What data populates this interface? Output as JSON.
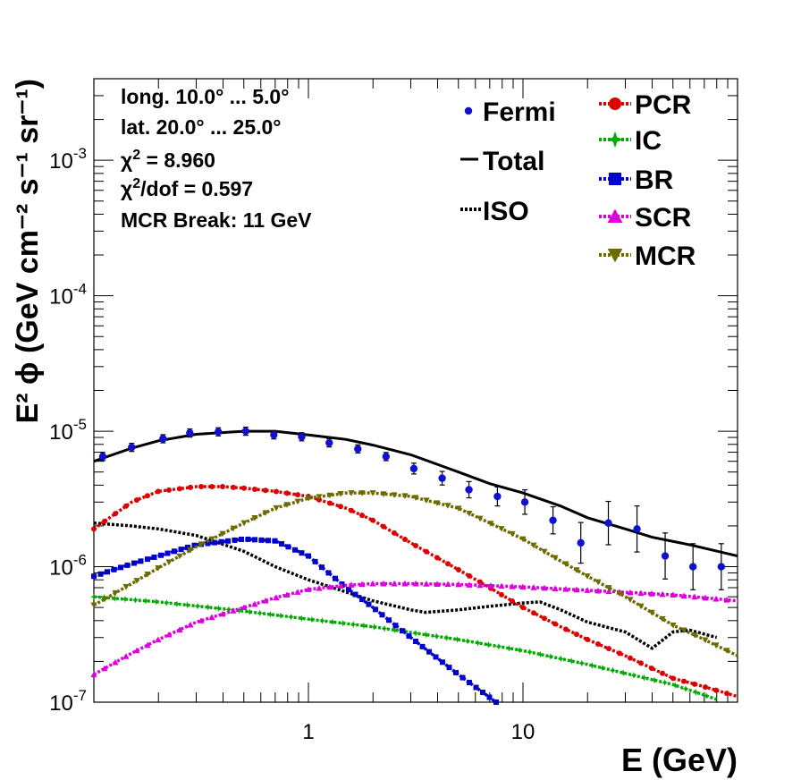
{
  "chart_data": {
    "type": "line",
    "xlabel": "E (GeV)",
    "ylabel": "E² ϕ (GeV cm⁻² s⁻¹ sr⁻¹)",
    "x_scale": "log",
    "y_scale": "log",
    "xlim": [
      0.1,
      100
    ],
    "ylim": [
      1e-07,
      0.004
    ],
    "x_tick_labels": [
      "1",
      "10"
    ],
    "y_tick_labels": [
      "10-7",
      "10-6",
      "10-5",
      "10-4",
      "10-3"
    ],
    "grid": false,
    "legend_position": "top-right",
    "annotations": [
      "long. 10.0° ... 5.0°",
      "lat. 20.0° ... 25.0°",
      "χ² = 8.960",
      "χ²/dof = 0.597",
      "MCR Break: 11 GeV"
    ],
    "fermi": {
      "name": "Fermi",
      "color": "#1010d0",
      "x": [
        0.11,
        0.15,
        0.21,
        0.28,
        0.38,
        0.51,
        0.69,
        0.93,
        1.25,
        1.7,
        2.3,
        3.1,
        4.2,
        5.6,
        7.6,
        10.2,
        13.8,
        18.6,
        25,
        34,
        46,
        62,
        84
      ],
      "y": [
        6.5e-06,
        7.6e-06,
        8.8e-06,
        9.7e-06,
        9.9e-06,
        1e-05,
        9.4e-06,
        9.1e-06,
        8.2e-06,
        7.4e-06,
        6.5e-06,
        5.3e-06,
        4.5e-06,
        3.7e-06,
        3.3e-06,
        3e-06,
        2.2e-06,
        1.5e-06,
        2.1e-06,
        1.9e-06,
        1.2e-06,
        1e-06,
        1e-06
      ],
      "err": [
        0.03,
        0.03,
        0.03,
        0.03,
        0.03,
        0.03,
        0.03,
        0.03,
        0.03,
        0.03,
        0.03,
        0.04,
        0.05,
        0.06,
        0.07,
        0.09,
        0.1,
        0.15,
        0.16,
        0.17,
        0.17,
        0.17,
        0.17
      ]
    },
    "series": [
      {
        "name": "Total",
        "color": "#000000",
        "style": "solid",
        "marker": "none",
        "x": [
          0.1,
          0.15,
          0.2,
          0.3,
          0.5,
          0.7,
          1.0,
          1.5,
          2.0,
          3.0,
          5.0,
          7.0,
          10,
          15,
          20,
          30,
          40,
          60,
          100
        ],
        "y": [
          6e-06,
          7.5e-06,
          8.5e-06,
          9.5e-06,
          1e-05,
          1e-05,
          9.4e-06,
          8.7e-06,
          7.9e-06,
          6.7e-06,
          5e-06,
          4.1e-06,
          3.5e-06,
          2.8e-06,
          2.3e-06,
          1.9e-06,
          1.65e-06,
          1.45e-06,
          1.2e-06
        ]
      },
      {
        "name": "ISO",
        "color": "#000000",
        "style": "dotted",
        "marker": "none",
        "x": [
          0.1,
          0.15,
          0.2,
          0.3,
          0.5,
          0.7,
          1.0,
          1.5,
          2.0,
          3.0,
          3.5,
          5.0,
          7.0,
          10,
          12,
          15,
          20,
          30,
          40,
          50,
          60,
          80
        ],
        "y": [
          2.1e-06,
          2e-06,
          1.9e-06,
          1.7e-06,
          1.3e-06,
          1e-06,
          8e-07,
          6.5e-07,
          5.6e-07,
          4.8e-07,
          4.6e-07,
          4.8e-07,
          5.1e-07,
          5.4e-07,
          5.5e-07,
          4.8e-07,
          3.9e-07,
          3.3e-07,
          2.5e-07,
          3.3e-07,
          3.4e-07,
          3e-07
        ]
      },
      {
        "name": "PCR",
        "color": "#dd0000",
        "style": "dotted",
        "marker": "circle",
        "x": [
          0.1,
          0.15,
          0.2,
          0.3,
          0.4,
          0.5,
          0.7,
          1.0,
          1.5,
          2.0,
          3.0,
          5.0,
          7.0,
          10,
          15,
          20,
          30,
          50,
          70,
          100
        ],
        "y": [
          1.9e-06,
          3e-06,
          3.6e-06,
          3.9e-06,
          3.9e-06,
          3.8e-06,
          3.6e-06,
          3.3e-06,
          2.7e-06,
          2.2e-06,
          1.5e-06,
          9.5e-07,
          7e-07,
          5e-07,
          3.6e-07,
          2.9e-07,
          2.2e-07,
          1.5e-07,
          1.3e-07,
          1.1e-07
        ]
      },
      {
        "name": "IC",
        "color": "#00aa00",
        "style": "dotted",
        "marker": "star",
        "x": [
          0.1,
          0.2,
          0.5,
          1.0,
          2.0,
          5.0,
          10,
          20,
          50,
          80
        ],
        "y": [
          6e-07,
          5.5e-07,
          4.7e-07,
          4.1e-07,
          3.6e-07,
          2.9e-07,
          2.4e-07,
          1.9e-07,
          1.35e-07,
          1.05e-07
        ]
      },
      {
        "name": "BR",
        "color": "#0000cc",
        "style": "dotted",
        "marker": "square",
        "x": [
          0.1,
          0.15,
          0.2,
          0.3,
          0.5,
          0.7,
          1.0,
          1.5,
          2.0,
          3.0,
          5.0,
          7.5
        ],
        "y": [
          8.5e-07,
          1.05e-06,
          1.2e-06,
          1.45e-06,
          1.6e-06,
          1.55e-06,
          1.2e-06,
          7e-07,
          5e-07,
          3e-07,
          1.6e-07,
          1e-07
        ]
      },
      {
        "name": "SCR",
        "color": "#dd00dd",
        "style": "dotted",
        "marker": "triangle-up",
        "x": [
          0.1,
          0.15,
          0.2,
          0.3,
          0.5,
          0.7,
          1.0,
          1.5,
          2.0,
          3.0,
          5.0,
          10,
          20,
          50,
          100
        ],
        "y": [
          1.6e-07,
          2.3e-07,
          2.9e-07,
          3.9e-07,
          5e-07,
          5.9e-07,
          6.8e-07,
          7.3e-07,
          7.5e-07,
          7.5e-07,
          7.4e-07,
          7.1e-07,
          6.7e-07,
          6.2e-07,
          5.6e-07
        ]
      },
      {
        "name": "MCR",
        "color": "#6b6b00",
        "style": "dotted",
        "marker": "triangle-down",
        "x": [
          0.1,
          0.15,
          0.2,
          0.3,
          0.5,
          0.7,
          1.0,
          1.5,
          2.0,
          3.0,
          5.0,
          7.0,
          10,
          15,
          20,
          30,
          50,
          70,
          100
        ],
        "y": [
          5.2e-07,
          7.5e-07,
          9.8e-07,
          1.4e-06,
          2.1e-06,
          2.7e-06,
          3.2e-06,
          3.5e-06,
          3.5e-06,
          3.3e-06,
          2.7e-06,
          2.1e-06,
          1.6e-06,
          1.1e-06,
          8.5e-07,
          6e-07,
          3.7e-07,
          2.9e-07,
          2.2e-07
        ]
      }
    ]
  }
}
